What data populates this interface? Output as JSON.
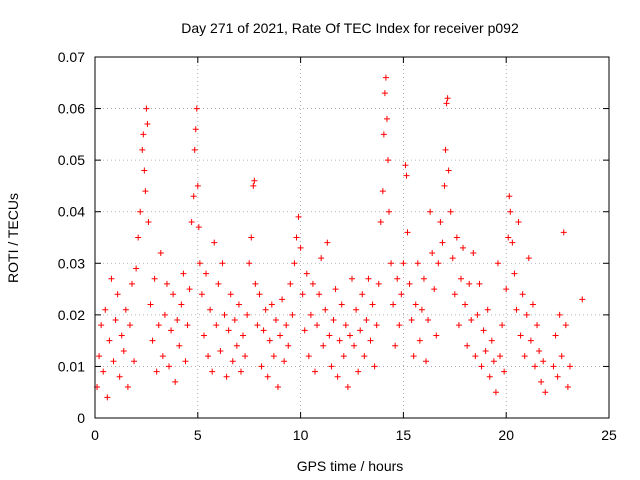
{
  "chart_data": {
    "type": "scatter",
    "title": "Day 271 of 2021, Rate Of TEC Index for receiver p092",
    "xlabel": "GPS time / hours",
    "ylabel": "ROTI / TECUs",
    "xlim": [
      0,
      25
    ],
    "ylim": [
      0,
      0.07
    ],
    "xticks": [
      0,
      5,
      10,
      15,
      20,
      25
    ],
    "yticks": [
      0,
      0.01,
      0.02,
      0.03,
      0.04,
      0.05,
      0.06,
      0.07
    ],
    "xtick_labels": [
      "0",
      "5",
      "10",
      "15",
      "20",
      "25"
    ],
    "ytick_labels": [
      "0",
      "0.01",
      "0.02",
      "0.03",
      "0.04",
      "0.05",
      "0.06",
      "0.07"
    ],
    "grid": true,
    "marker": "+",
    "color": "#ff0000",
    "points": [
      [
        0.1,
        0.006
      ],
      [
        0.2,
        0.012
      ],
      [
        0.3,
        0.018
      ],
      [
        0.4,
        0.009
      ],
      [
        0.5,
        0.021
      ],
      [
        0.6,
        0.004
      ],
      [
        0.7,
        0.015
      ],
      [
        0.8,
        0.027
      ],
      [
        0.9,
        0.011
      ],
      [
        1.0,
        0.019
      ],
      [
        1.1,
        0.024
      ],
      [
        1.2,
        0.008
      ],
      [
        1.3,
        0.016
      ],
      [
        1.4,
        0.013
      ],
      [
        1.5,
        0.021
      ],
      [
        1.6,
        0.006
      ],
      [
        1.7,
        0.018
      ],
      [
        1.8,
        0.026
      ],
      [
        1.9,
        0.011
      ],
      [
        2.0,
        0.029
      ],
      [
        2.1,
        0.035
      ],
      [
        2.2,
        0.04
      ],
      [
        2.3,
        0.052
      ],
      [
        2.35,
        0.055
      ],
      [
        2.4,
        0.048
      ],
      [
        2.45,
        0.044
      ],
      [
        2.5,
        0.06
      ],
      [
        2.55,
        0.057
      ],
      [
        2.6,
        0.038
      ],
      [
        2.7,
        0.022
      ],
      [
        2.8,
        0.015
      ],
      [
        2.9,
        0.027
      ],
      [
        3.0,
        0.009
      ],
      [
        3.1,
        0.018
      ],
      [
        3.2,
        0.032
      ],
      [
        3.3,
        0.012
      ],
      [
        3.4,
        0.02
      ],
      [
        3.5,
        0.026
      ],
      [
        3.6,
        0.01
      ],
      [
        3.7,
        0.017
      ],
      [
        3.8,
        0.024
      ],
      [
        3.9,
        0.007
      ],
      [
        4.0,
        0.019
      ],
      [
        4.1,
        0.014
      ],
      [
        4.2,
        0.022
      ],
      [
        4.3,
        0.028
      ],
      [
        4.4,
        0.011
      ],
      [
        4.5,
        0.018
      ],
      [
        4.6,
        0.025
      ],
      [
        4.7,
        0.038
      ],
      [
        4.8,
        0.043
      ],
      [
        4.85,
        0.052
      ],
      [
        4.9,
        0.056
      ],
      [
        4.95,
        0.06
      ],
      [
        5.0,
        0.045
      ],
      [
        5.05,
        0.037
      ],
      [
        5.1,
        0.03
      ],
      [
        5.2,
        0.024
      ],
      [
        5.3,
        0.016
      ],
      [
        5.4,
        0.028
      ],
      [
        5.5,
        0.012
      ],
      [
        5.6,
        0.021
      ],
      [
        5.7,
        0.009
      ],
      [
        5.8,
        0.034
      ],
      [
        5.9,
        0.018
      ],
      [
        6.0,
        0.026
      ],
      [
        6.1,
        0.013
      ],
      [
        6.2,
        0.03
      ],
      [
        6.3,
        0.02
      ],
      [
        6.4,
        0.008
      ],
      [
        6.5,
        0.017
      ],
      [
        6.6,
        0.024
      ],
      [
        6.7,
        0.011
      ],
      [
        6.8,
        0.019
      ],
      [
        6.9,
        0.014
      ],
      [
        7.0,
        0.022
      ],
      [
        7.1,
        0.009
      ],
      [
        7.2,
        0.016
      ],
      [
        7.3,
        0.012
      ],
      [
        7.4,
        0.02
      ],
      [
        7.5,
        0.03
      ],
      [
        7.6,
        0.035
      ],
      [
        7.7,
        0.045
      ],
      [
        7.75,
        0.046
      ],
      [
        7.8,
        0.026
      ],
      [
        7.9,
        0.018
      ],
      [
        8.0,
        0.024
      ],
      [
        8.1,
        0.01
      ],
      [
        8.2,
        0.017
      ],
      [
        8.3,
        0.021
      ],
      [
        8.4,
        0.008
      ],
      [
        8.5,
        0.015
      ],
      [
        8.6,
        0.022
      ],
      [
        8.7,
        0.012
      ],
      [
        8.8,
        0.019
      ],
      [
        8.9,
        0.006
      ],
      [
        9.0,
        0.016
      ],
      [
        9.1,
        0.023
      ],
      [
        9.2,
        0.011
      ],
      [
        9.3,
        0.018
      ],
      [
        9.4,
        0.014
      ],
      [
        9.5,
        0.026
      ],
      [
        9.6,
        0.02
      ],
      [
        9.7,
        0.03
      ],
      [
        9.8,
        0.035
      ],
      [
        9.9,
        0.039
      ],
      [
        10.0,
        0.033
      ],
      [
        10.1,
        0.024
      ],
      [
        10.2,
        0.017
      ],
      [
        10.3,
        0.028
      ],
      [
        10.4,
        0.012
      ],
      [
        10.5,
        0.02
      ],
      [
        10.6,
        0.026
      ],
      [
        10.7,
        0.009
      ],
      [
        10.8,
        0.018
      ],
      [
        10.9,
        0.024
      ],
      [
        11.0,
        0.031
      ],
      [
        11.1,
        0.014
      ],
      [
        11.2,
        0.021
      ],
      [
        11.3,
        0.034
      ],
      [
        11.4,
        0.016
      ],
      [
        11.5,
        0.01
      ],
      [
        11.6,
        0.019
      ],
      [
        11.7,
        0.025
      ],
      [
        11.8,
        0.008
      ],
      [
        11.9,
        0.015
      ],
      [
        12.0,
        0.022
      ],
      [
        12.1,
        0.012
      ],
      [
        12.2,
        0.018
      ],
      [
        12.3,
        0.006
      ],
      [
        12.4,
        0.016
      ],
      [
        12.5,
        0.027
      ],
      [
        12.6,
        0.014
      ],
      [
        12.7,
        0.021
      ],
      [
        12.8,
        0.009
      ],
      [
        12.9,
        0.017
      ],
      [
        13.0,
        0.024
      ],
      [
        13.1,
        0.012
      ],
      [
        13.2,
        0.019
      ],
      [
        13.3,
        0.027
      ],
      [
        13.4,
        0.015
      ],
      [
        13.5,
        0.022
      ],
      [
        13.6,
        0.01
      ],
      [
        13.7,
        0.018
      ],
      [
        13.8,
        0.026
      ],
      [
        13.9,
        0.038
      ],
      [
        14.0,
        0.044
      ],
      [
        14.05,
        0.055
      ],
      [
        14.1,
        0.063
      ],
      [
        14.15,
        0.066
      ],
      [
        14.2,
        0.058
      ],
      [
        14.25,
        0.05
      ],
      [
        14.3,
        0.04
      ],
      [
        14.4,
        0.03
      ],
      [
        14.5,
        0.022
      ],
      [
        14.6,
        0.014
      ],
      [
        14.7,
        0.027
      ],
      [
        14.8,
        0.018
      ],
      [
        14.9,
        0.024
      ],
      [
        15.0,
        0.03
      ],
      [
        15.1,
        0.049
      ],
      [
        15.15,
        0.047
      ],
      [
        15.2,
        0.036
      ],
      [
        15.3,
        0.026
      ],
      [
        15.4,
        0.019
      ],
      [
        15.5,
        0.012
      ],
      [
        15.6,
        0.022
      ],
      [
        15.7,
        0.03
      ],
      [
        15.8,
        0.015
      ],
      [
        15.9,
        0.021
      ],
      [
        16.0,
        0.027
      ],
      [
        16.1,
        0.011
      ],
      [
        16.2,
        0.019
      ],
      [
        16.3,
        0.04
      ],
      [
        16.4,
        0.032
      ],
      [
        16.5,
        0.025
      ],
      [
        16.6,
        0.016
      ],
      [
        16.7,
        0.03
      ],
      [
        16.8,
        0.038
      ],
      [
        16.9,
        0.034
      ],
      [
        17.0,
        0.045
      ],
      [
        17.05,
        0.052
      ],
      [
        17.1,
        0.061
      ],
      [
        17.15,
        0.062
      ],
      [
        17.2,
        0.048
      ],
      [
        17.3,
        0.04
      ],
      [
        17.4,
        0.031
      ],
      [
        17.5,
        0.024
      ],
      [
        17.6,
        0.035
      ],
      [
        17.7,
        0.018
      ],
      [
        17.8,
        0.027
      ],
      [
        17.9,
        0.033
      ],
      [
        18.0,
        0.022
      ],
      [
        18.1,
        0.014
      ],
      [
        18.2,
        0.026
      ],
      [
        18.3,
        0.019
      ],
      [
        18.4,
        0.032
      ],
      [
        18.5,
        0.012
      ],
      [
        18.6,
        0.02
      ],
      [
        18.7,
        0.026
      ],
      [
        18.8,
        0.01
      ],
      [
        18.9,
        0.017
      ],
      [
        19.0,
        0.013
      ],
      [
        19.1,
        0.021
      ],
      [
        19.2,
        0.008
      ],
      [
        19.3,
        0.015
      ],
      [
        19.4,
        0.011
      ],
      [
        19.5,
        0.005
      ],
      [
        19.6,
        0.03
      ],
      [
        19.7,
        0.012
      ],
      [
        19.8,
        0.018
      ],
      [
        19.9,
        0.009
      ],
      [
        20.0,
        0.025
      ],
      [
        20.1,
        0.035
      ],
      [
        20.15,
        0.043
      ],
      [
        20.2,
        0.04
      ],
      [
        20.3,
        0.034
      ],
      [
        20.4,
        0.028
      ],
      [
        20.5,
        0.021
      ],
      [
        20.6,
        0.038
      ],
      [
        20.7,
        0.016
      ],
      [
        20.8,
        0.024
      ],
      [
        20.9,
        0.012
      ],
      [
        21.0,
        0.02
      ],
      [
        21.1,
        0.031
      ],
      [
        21.2,
        0.015
      ],
      [
        21.3,
        0.022
      ],
      [
        21.4,
        0.01
      ],
      [
        21.5,
        0.018
      ],
      [
        21.6,
        0.013
      ],
      [
        21.7,
        0.007
      ],
      [
        21.8,
        0.011
      ],
      [
        21.9,
        0.005
      ],
      [
        22.3,
        0.01
      ],
      [
        22.4,
        0.016
      ],
      [
        22.5,
        0.008
      ],
      [
        22.6,
        0.02
      ],
      [
        22.7,
        0.012
      ],
      [
        22.8,
        0.036
      ],
      [
        22.9,
        0.018
      ],
      [
        23.0,
        0.006
      ],
      [
        23.1,
        0.01
      ],
      [
        23.7,
        0.023
      ]
    ]
  }
}
